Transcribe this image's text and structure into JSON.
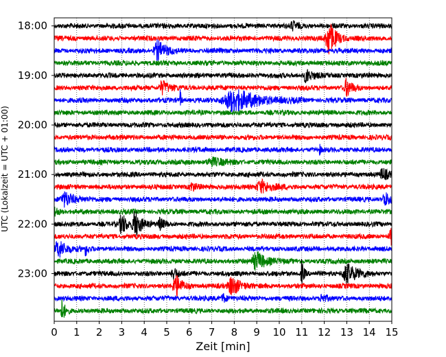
{
  "chart_data": {
    "type": "line",
    "title": "",
    "xlabel": "Zeit  [min]",
    "ylabel": "UTC (Lokalzeit = UTC + 01:00)",
    "xlim": [
      0,
      15
    ],
    "x_ticks": [
      0,
      1,
      2,
      3,
      4,
      5,
      6,
      7,
      8,
      9,
      10,
      11,
      12,
      13,
      14,
      15
    ],
    "y_tick_labels": [
      "18:00",
      "19:00",
      "20:00",
      "21:00",
      "22:00",
      "23:00"
    ],
    "x_grid": "dotted",
    "trace_interval_minutes": 15,
    "trace_colors": [
      "#000000",
      "#ff0000",
      "#0000ff",
      "#008000"
    ],
    "traces": [
      {
        "time": "18:00",
        "color": "#000000",
        "events": [
          {
            "t": 10.6,
            "amp": 0.35,
            "dur": 0.25
          }
        ]
      },
      {
        "time": "18:15",
        "color": "#ff0000",
        "events": [
          {
            "t": 12.2,
            "amp": 1.6,
            "dur": 0.35
          }
        ]
      },
      {
        "time": "18:30",
        "color": "#0000ff",
        "events": [
          {
            "t": 4.6,
            "amp": 0.9,
            "dur": 0.4
          }
        ]
      },
      {
        "time": "18:45",
        "color": "#008000",
        "events": []
      },
      {
        "time": "19:00",
        "color": "#000000",
        "events": [
          {
            "t": 11.2,
            "amp": 0.6,
            "dur": 0.3
          }
        ]
      },
      {
        "time": "19:15",
        "color": "#ff0000",
        "events": [
          {
            "t": 4.8,
            "amp": 0.6,
            "dur": 0.35
          },
          {
            "t": 13.0,
            "amp": 0.8,
            "dur": 0.25
          }
        ]
      },
      {
        "time": "19:30",
        "color": "#0000ff",
        "events": [
          {
            "t": 5.6,
            "amp": 0.9,
            "dur": 0.05
          },
          {
            "t": 8.0,
            "amp": 1.0,
            "dur": 1.2
          }
        ]
      },
      {
        "time": "19:45",
        "color": "#008000",
        "events": []
      },
      {
        "time": "20:00",
        "color": "#000000",
        "events": []
      },
      {
        "time": "20:15",
        "color": "#ff0000",
        "events": []
      },
      {
        "time": "20:30",
        "color": "#0000ff",
        "events": [
          {
            "t": 11.8,
            "amp": 0.4,
            "dur": 0.05
          }
        ]
      },
      {
        "time": "20:45",
        "color": "#008000",
        "events": [
          {
            "t": 7.0,
            "amp": 0.35,
            "dur": 0.6
          }
        ]
      },
      {
        "time": "21:00",
        "color": "#000000",
        "events": [
          {
            "t": 14.6,
            "amp": 0.5,
            "dur": 0.3
          }
        ]
      },
      {
        "time": "21:15",
        "color": "#ff0000",
        "events": [
          {
            "t": 9.2,
            "amp": 0.6,
            "dur": 0.5
          },
          {
            "t": 6.1,
            "amp": 0.4,
            "dur": 0.2
          }
        ]
      },
      {
        "time": "21:30",
        "color": "#0000ff",
        "events": [
          {
            "t": 0.5,
            "amp": 0.6,
            "dur": 0.5
          },
          {
            "t": 14.7,
            "amp": 0.6,
            "dur": 0.3
          }
        ]
      },
      {
        "time": "21:45",
        "color": "#008000",
        "events": [
          {
            "t": 0.0,
            "amp": 0.5,
            "dur": 0.2
          }
        ]
      },
      {
        "time": "22:00",
        "color": "#000000",
        "events": [
          {
            "t": 3.0,
            "amp": 1.0,
            "dur": 0.25
          },
          {
            "t": 3.6,
            "amp": 1.3,
            "dur": 0.3
          },
          {
            "t": 4.7,
            "amp": 0.5,
            "dur": 0.2
          }
        ]
      },
      {
        "time": "22:15",
        "color": "#ff0000",
        "events": [
          {
            "t": 15.0,
            "amp": 0.7,
            "dur": 0.3
          }
        ]
      },
      {
        "time": "22:30",
        "color": "#0000ff",
        "events": [
          {
            "t": 0.2,
            "amp": 0.8,
            "dur": 0.4
          },
          {
            "t": 1.4,
            "amp": 0.6,
            "dur": 0.1
          }
        ]
      },
      {
        "time": "22:45",
        "color": "#008000",
        "events": [
          {
            "t": 9.0,
            "amp": 0.8,
            "dur": 0.5
          }
        ]
      },
      {
        "time": "23:00",
        "color": "#000000",
        "events": [
          {
            "t": 11.0,
            "amp": 1.3,
            "dur": 0.1
          },
          {
            "t": 5.3,
            "amp": 0.6,
            "dur": 0.2
          },
          {
            "t": 13.0,
            "amp": 0.9,
            "dur": 0.5
          }
        ]
      },
      {
        "time": "23:15",
        "color": "#ff0000",
        "events": [
          {
            "t": 5.4,
            "amp": 1.0,
            "dur": 0.3
          },
          {
            "t": 7.9,
            "amp": 0.9,
            "dur": 0.4
          }
        ]
      },
      {
        "time": "23:30",
        "color": "#0000ff",
        "events": [
          {
            "t": 7.5,
            "amp": 0.4,
            "dur": 0.2
          },
          {
            "t": 11.9,
            "amp": 0.4,
            "dur": 0.2
          }
        ]
      },
      {
        "time": "23:45",
        "color": "#008000",
        "events": [
          {
            "t": 0.35,
            "amp": 0.9,
            "dur": 0.15
          }
        ]
      }
    ]
  }
}
